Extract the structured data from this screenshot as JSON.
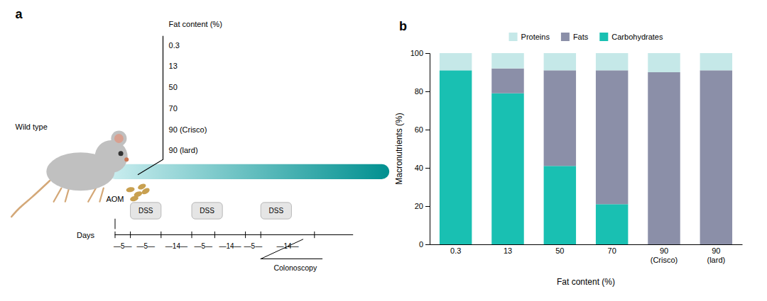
{
  "chart_data": [
    {
      "type": "diagram",
      "title": "a",
      "annotations": [
        "Fat content (%)",
        "0.3",
        "13",
        "50",
        "70",
        "90 (Crisco)",
        "90 (lard)",
        "Wild type",
        "AOM",
        "DSS",
        "DSS",
        "DSS",
        "Days",
        "—5—",
        "—5—",
        "—14—",
        "—5—",
        "—14—",
        "—5—",
        "—14—",
        "Colonoscopy"
      ]
    },
    {
      "type": "bar",
      "stacked": true,
      "title": "b",
      "categories": [
        "0.3",
        "13",
        "50",
        "70",
        "90\n(Crisco)",
        "90\n(lard)"
      ],
      "series": [
        {
          "name": "Carbohydrates",
          "color": "#19c0b2",
          "values": [
            91,
            79,
            41,
            21,
            0,
            0
          ]
        },
        {
          "name": "Fats",
          "color": "#8b8fa8",
          "values": [
            0,
            13,
            50,
            70,
            90,
            91
          ]
        },
        {
          "name": "Proteins",
          "color": "#c5e8e8",
          "values": [
            9,
            8,
            9,
            9,
            10,
            9
          ]
        }
      ],
      "xlabel": "Fat content (%)",
      "ylabel": "Macronutrients (%)",
      "ylim": [
        0,
        100
      ],
      "yticks": [
        0,
        20,
        40,
        60,
        80,
        100
      ],
      "legend": "top",
      "grid": false
    }
  ]
}
